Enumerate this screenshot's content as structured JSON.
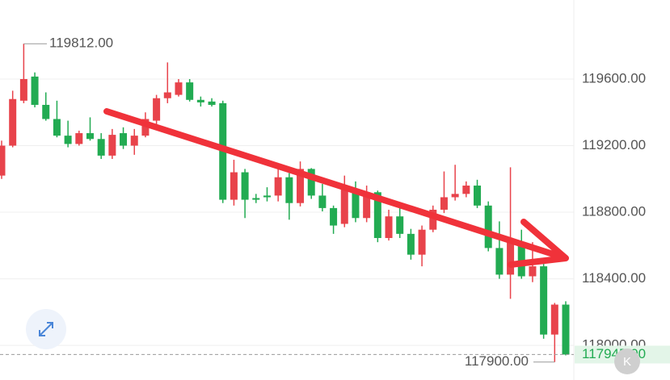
{
  "chart_data": {
    "type": "candlestick",
    "open": [
      119020,
      119200,
      119470,
      119615,
      119445,
      119360,
      119260,
      119210,
      119275,
      119240,
      119140,
      119275,
      119200,
      119260,
      119350,
      119485,
      119505,
      119580,
      119475,
      119465,
      119455,
      118875,
      119040,
      118885,
      118900,
      118900,
      119010,
      118855,
      119060,
      118900,
      118825,
      118730,
      118935,
      118765,
      118920,
      118645,
      118775,
      118670,
      118545,
      118695,
      118815,
      118890,
      118910,
      118960,
      118840,
      118585,
      118425,
      118620,
      118415,
      118475,
      118065,
      118245
    ],
    "high": [
      119230,
      119530,
      119812,
      119640,
      119520,
      119470,
      119350,
      119290,
      119370,
      119275,
      119300,
      119310,
      119300,
      119400,
      119505,
      119700,
      119600,
      119600,
      119495,
      119485,
      119470,
      119115,
      119060,
      118910,
      118950,
      119080,
      119035,
      119105,
      119065,
      118970,
      118840,
      119020,
      118985,
      118960,
      118930,
      118815,
      118825,
      118700,
      118720,
      118840,
      119045,
      119085,
      118985,
      118995,
      118865,
      118745,
      119070,
      118695,
      118620,
      118495,
      118255,
      118265
    ],
    "low": [
      119000,
      119190,
      119455,
      119430,
      119350,
      119250,
      119190,
      119200,
      119230,
      119120,
      119120,
      119180,
      119145,
      119250,
      119325,
      119455,
      119495,
      119465,
      119435,
      119435,
      118855,
      118840,
      118765,
      118855,
      118865,
      118865,
      118755,
      118835,
      118880,
      118805,
      118670,
      118710,
      118740,
      118740,
      118620,
      118630,
      118645,
      118515,
      118475,
      118680,
      118795,
      118870,
      118890,
      118825,
      118565,
      118400,
      118280,
      118400,
      118380,
      118040,
      117900,
      117940
    ],
    "close": [
      119200,
      119480,
      119600,
      119445,
      119360,
      119260,
      119210,
      119275,
      119240,
      119140,
      119265,
      119200,
      119260,
      119360,
      119485,
      119520,
      119580,
      119475,
      119460,
      119445,
      118875,
      119040,
      118875,
      118875,
      118890,
      119010,
      118855,
      119060,
      118900,
      118825,
      118720,
      118950,
      118765,
      118920,
      118645,
      118775,
      118670,
      118545,
      118695,
      118815,
      118890,
      118910,
      118960,
      118840,
      118585,
      118425,
      118620,
      118415,
      118475,
      118065,
      118245,
      117945
    ],
    "up_color": "#e8434b",
    "down_color": "#22ab52",
    "ylim": [
      117792,
      120075
    ],
    "yticks": [
      {
        "value": 118000,
        "label": "118000.00"
      },
      {
        "value": 118400,
        "label": "118400.00"
      },
      {
        "value": 118800,
        "label": "118800.00"
      },
      {
        "value": 119200,
        "label": "119200.00"
      },
      {
        "value": 119600,
        "label": "119600.00"
      }
    ],
    "grid": true,
    "high_marker": {
      "value": 119812,
      "label": "119812.00"
    },
    "low_marker": {
      "value": 117900,
      "label": "117900.00"
    },
    "last_price": {
      "value": 117945,
      "label": "117945.00"
    }
  }
}
